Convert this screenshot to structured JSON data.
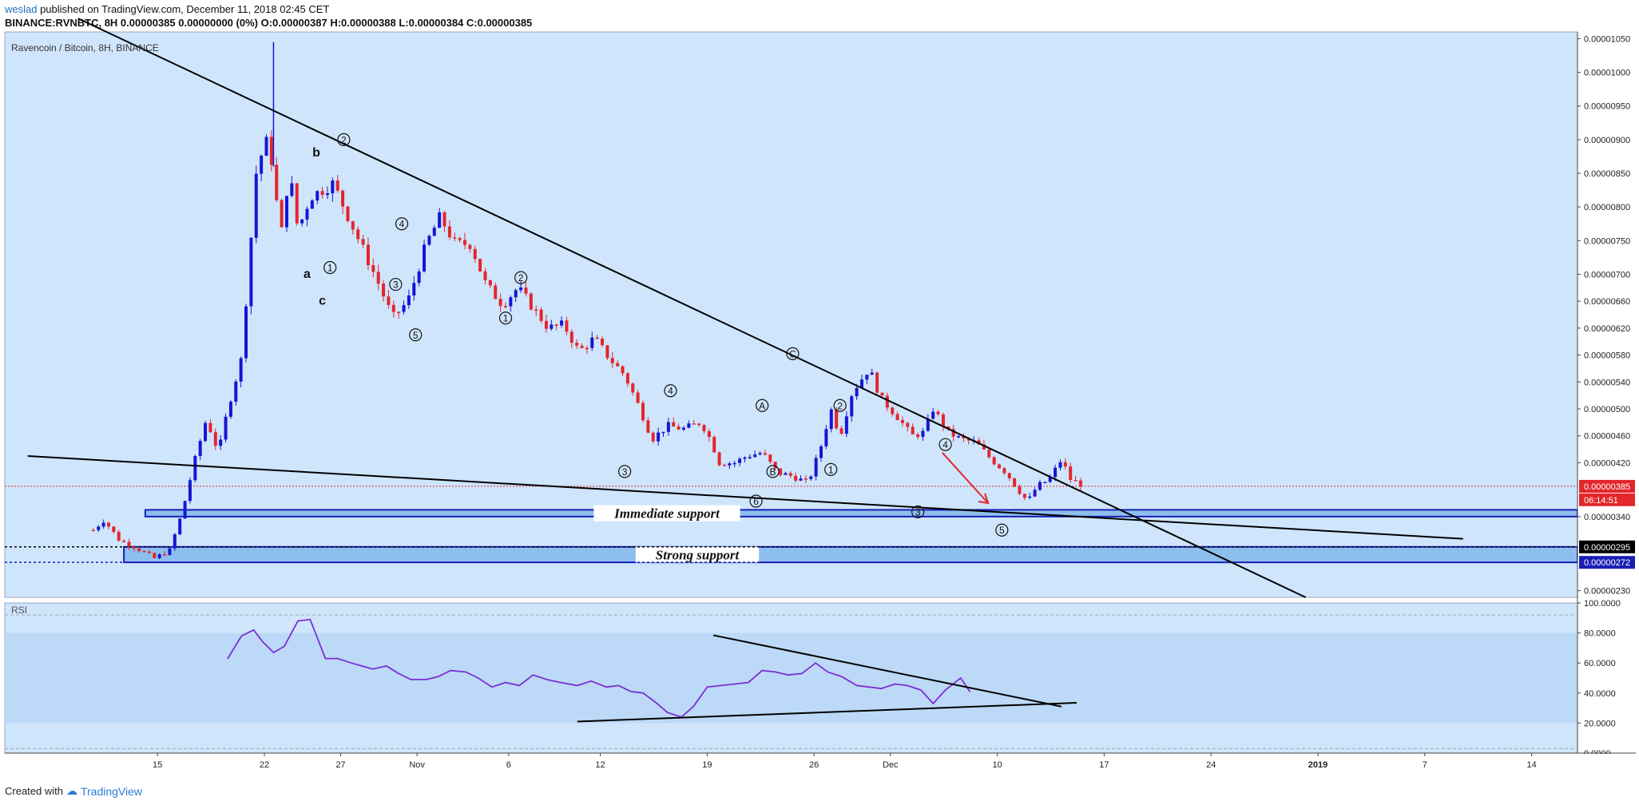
{
  "header": {
    "author": "weslad",
    "published": " published on TradingView.com, December 11, 2018 02:45 CET",
    "ohlc_line": "BINANCE:RVNBTC, 8H  0.00000385 0.00000000 (0%)  O:0.00000387 H:0.00000388 L:0.00000384 C:0.00000385"
  },
  "footer": {
    "created_with": "Created with",
    "brand": "TradingView"
  },
  "colors": {
    "bg": "#cfe5fc",
    "rsi_bg": "#bcd9f7",
    "up": "#1515d6",
    "down": "#e3262b",
    "support": "#8dbfee",
    "support_border": "#1a1fb4",
    "rsi_line": "#7b2fd6",
    "arrow": "#e3262b"
  },
  "chart_data": [
    {
      "type": "candlestick",
      "title": "Ravencoin / Bitcoin, 8H, BINANCE",
      "ylim": [
        2.2e-06,
        1.06e-05
      ],
      "y_ticks": [
        "0.00000230",
        "0.00000340",
        "0.00000420",
        "0.00000460",
        "0.00000500",
        "0.00000540",
        "0.00000580",
        "0.00000620",
        "0.00000660",
        "0.00000700",
        "0.00000750",
        "0.00000800",
        "0.00000850",
        "0.00000900",
        "0.00000950",
        "0.00001000",
        "0.00001050"
      ],
      "x_ticks": [
        "15",
        "22",
        "27",
        "Nov",
        "6",
        "12",
        "19",
        "26",
        "Dec",
        "10",
        "17",
        "24",
        "2019",
        "7",
        "14"
      ],
      "x_ticks_pos": [
        15,
        22,
        27,
        32,
        38,
        44,
        51,
        58,
        63,
        70,
        77,
        84,
        91,
        98,
        105
      ],
      "x_range": [
        5,
        108
      ],
      "price_marks": [
        {
          "label": "0.00000385",
          "value": 3.85e-06,
          "bg": "#e3262b",
          "fg": "#ffffff"
        },
        {
          "label": "06:14:51",
          "value": 3.65e-06,
          "bg": "#e3262b",
          "fg": "#ffffff"
        },
        {
          "label": "0.00000295",
          "value": 2.95e-06,
          "bg": "#000000",
          "fg": "#ffffff"
        },
        {
          "label": "0.00000272",
          "value": 2.72e-06,
          "bg": "#1a1fb4",
          "fg": "#ffffff"
        }
      ],
      "price_anchors": [
        [
          10.8,
          3.2
        ],
        [
          11.5,
          3.35
        ],
        [
          12.5,
          3.05
        ],
        [
          13.5,
          2.95
        ],
        [
          14.8,
          2.78
        ],
        [
          15.8,
          2.9
        ],
        [
          16.6,
          3.45
        ],
        [
          17.4,
          4.2
        ],
        [
          18.2,
          4.85
        ],
        [
          19,
          4.35
        ],
        [
          19.6,
          5.0
        ],
        [
          20.5,
          5.75
        ],
        [
          21.5,
          8.6
        ],
        [
          22.3,
          9.05
        ],
        [
          22.7,
          8.2
        ],
        [
          23.2,
          7.55
        ],
        [
          23.6,
          8.6
        ],
        [
          24.2,
          7.65
        ],
        [
          25,
          8.15
        ],
        [
          26.5,
          8.35
        ],
        [
          27.5,
          7.85
        ],
        [
          28.5,
          7.35
        ],
        [
          29.5,
          6.85
        ],
        [
          30.4,
          6.35
        ],
        [
          31.4,
          6.6
        ],
        [
          32.6,
          7.45
        ],
        [
          33.5,
          7.85
        ],
        [
          34.5,
          7.45
        ],
        [
          35.5,
          7.45
        ],
        [
          36.5,
          6.85
        ],
        [
          37.6,
          6.55
        ],
        [
          38.6,
          6.8
        ],
        [
          39.6,
          6.5
        ],
        [
          40.6,
          6.2
        ],
        [
          41.6,
          6.25
        ],
        [
          42.6,
          5.85
        ],
        [
          43.6,
          6.05
        ],
        [
          44.6,
          5.75
        ],
        [
          45.6,
          5.5
        ],
        [
          46.6,
          5.0
        ],
        [
          47.4,
          4.55
        ],
        [
          48.4,
          4.75
        ],
        [
          49.4,
          4.7
        ],
        [
          50.6,
          4.8
        ],
        [
          51.2,
          4.55
        ],
        [
          51.8,
          4.2
        ],
        [
          52.8,
          4.2
        ],
        [
          53.6,
          4.3
        ],
        [
          54.6,
          4.35
        ],
        [
          55.6,
          4.05
        ],
        [
          56.6,
          4.0
        ],
        [
          57.6,
          3.9
        ],
        [
          58.4,
          4.4
        ],
        [
          59.1,
          5.0
        ],
        [
          59.7,
          4.6
        ],
        [
          60.5,
          5.25
        ],
        [
          61.6,
          5.6
        ],
        [
          62.4,
          5.15
        ],
        [
          63.4,
          4.9
        ],
        [
          64.4,
          4.6
        ],
        [
          65.2,
          4.65
        ],
        [
          65.8,
          5.0
        ],
        [
          66.8,
          4.65
        ],
        [
          67.6,
          4.55
        ],
        [
          68.6,
          4.5
        ],
        [
          69.6,
          4.25
        ],
        [
          70.6,
          4.05
        ],
        [
          71.2,
          3.85
        ],
        [
          72.0,
          3.62
        ],
        [
          72.6,
          3.85
        ],
        [
          73.4,
          3.95
        ],
        [
          74.2,
          4.25
        ],
        [
          74.8,
          3.95
        ],
        [
          75.6,
          3.87
        ]
      ],
      "series": [
        {
          "name": "RVNBTC",
          "segments": "wave-labelled downtrend inside falling wedge"
        }
      ],
      "annotations": {
        "wave_labels": [
          {
            "t": "2",
            "circle": true,
            "x": 27.2,
            "p": 9.0
          },
          {
            "t": "b",
            "circle": false,
            "x": 25.4,
            "p": 8.8
          },
          {
            "t": "a",
            "circle": false,
            "x": 24.8,
            "p": 7.0
          },
          {
            "t": "1",
            "circle": true,
            "x": 26.3,
            "p": 7.1
          },
          {
            "t": "c",
            "circle": false,
            "x": 25.8,
            "p": 6.6
          },
          {
            "t": "4",
            "circle": true,
            "x": 31.0,
            "p": 7.75
          },
          {
            "t": "3",
            "circle": true,
            "x": 30.6,
            "p": 6.85
          },
          {
            "t": "5",
            "circle": true,
            "x": 31.9,
            "p": 6.1
          },
          {
            "t": "2",
            "circle": true,
            "x": 38.8,
            "p": 6.95
          },
          {
            "t": "1",
            "circle": true,
            "x": 37.8,
            "p": 6.35
          },
          {
            "t": "4",
            "circle": true,
            "x": 48.6,
            "p": 5.27
          },
          {
            "t": "3",
            "circle": true,
            "x": 45.6,
            "p": 4.07
          },
          {
            "t": "A",
            "circle": true,
            "x": 54.6,
            "p": 5.05
          },
          {
            "t": "B",
            "circle": true,
            "x": 55.3,
            "p": 4.07
          },
          {
            "t": "6",
            "circle": true,
            "x": 54.2,
            "p": 3.63
          },
          {
            "t": "C",
            "circle": true,
            "x": 56.6,
            "p": 5.82
          },
          {
            "t": "2",
            "circle": true,
            "x": 59.7,
            "p": 5.05
          },
          {
            "t": "1",
            "circle": true,
            "x": 59.1,
            "p": 4.1
          },
          {
            "t": "4",
            "circle": true,
            "x": 66.6,
            "p": 4.47
          },
          {
            "t": "3",
            "circle": true,
            "x": 64.8,
            "p": 3.47
          },
          {
            "t": "5",
            "circle": true,
            "x": 70.3,
            "p": 3.2
          }
        ],
        "zones": [
          {
            "label": "Immediate support",
            "from": 3.4e-06,
            "to": 3.5e-06,
            "x_start": 14.2
          },
          {
            "label": "Strong support",
            "from": 2.72e-06,
            "to": 2.95e-06,
            "x_start": 12.8
          }
        ],
        "trendlines": [
          {
            "name": "upper-resistance",
            "p1": [
              9.8,
              10.8
            ],
            "p2": [
              90.2,
              2.2
            ]
          },
          {
            "name": "lower-support",
            "p1": [
              6.5,
              4.3
            ],
            "p2": [
              100.5,
              3.07
            ]
          }
        ],
        "arrow": {
          "from": [
            66.4,
            4.35
          ],
          "to": [
            69.4,
            3.6
          ]
        }
      }
    },
    {
      "type": "line",
      "title": "RSI",
      "ylim": [
        0,
        100
      ],
      "y_ticks": [
        "0.0000",
        "20.0000",
        "40.0000",
        "60.0000",
        "80.0000",
        "100.0000"
      ],
      "y_tick_values": [
        0,
        20,
        40,
        60,
        80,
        100
      ],
      "series": [
        {
          "name": "RSI",
          "x": [
            19.6,
            20.5,
            21.3,
            21.9,
            22.6,
            23.3,
            24.2,
            25,
            26,
            26.8,
            27.7,
            28.4,
            29.1,
            30.0,
            30.8,
            31.6,
            32.6,
            33.4,
            34.2,
            35.2,
            36.0,
            36.9,
            37.8,
            38.7,
            39.6,
            40.5,
            41.4,
            42.5,
            43.4,
            44.4,
            45.2,
            46.0,
            46.8,
            47.6,
            48.4,
            49.3,
            50.1,
            51.0,
            51.9,
            52.8,
            53.7,
            54.6,
            55.5,
            56.3,
            57.2,
            58.1,
            58.9,
            59.8,
            60.8,
            61.6,
            62.4,
            63.3,
            64.1,
            65.0,
            65.8,
            66.6,
            67.6,
            68.2
          ],
          "values": [
            63,
            78,
            82,
            74,
            67,
            71,
            88,
            89,
            63,
            63,
            60,
            58,
            56,
            58,
            53,
            49,
            49,
            51,
            55,
            54,
            50,
            44,
            47,
            45,
            52,
            49,
            47,
            45,
            48,
            44,
            45,
            41,
            40,
            34,
            27,
            24,
            31,
            44,
            45,
            46,
            47,
            55,
            54,
            52,
            53,
            60,
            54,
            51,
            45,
            44,
            43,
            46,
            45,
            42,
            33,
            42,
            50,
            41
          ]
        }
      ],
      "trendlines": [
        {
          "name": "rsi-upper",
          "p1": [
            51.4,
            78.5
          ],
          "p2": [
            74.2,
            31.0
          ]
        },
        {
          "name": "rsi-lower",
          "p1": [
            42.5,
            21.0
          ],
          "p2": [
            75.2,
            33.5
          ]
        }
      ]
    }
  ]
}
